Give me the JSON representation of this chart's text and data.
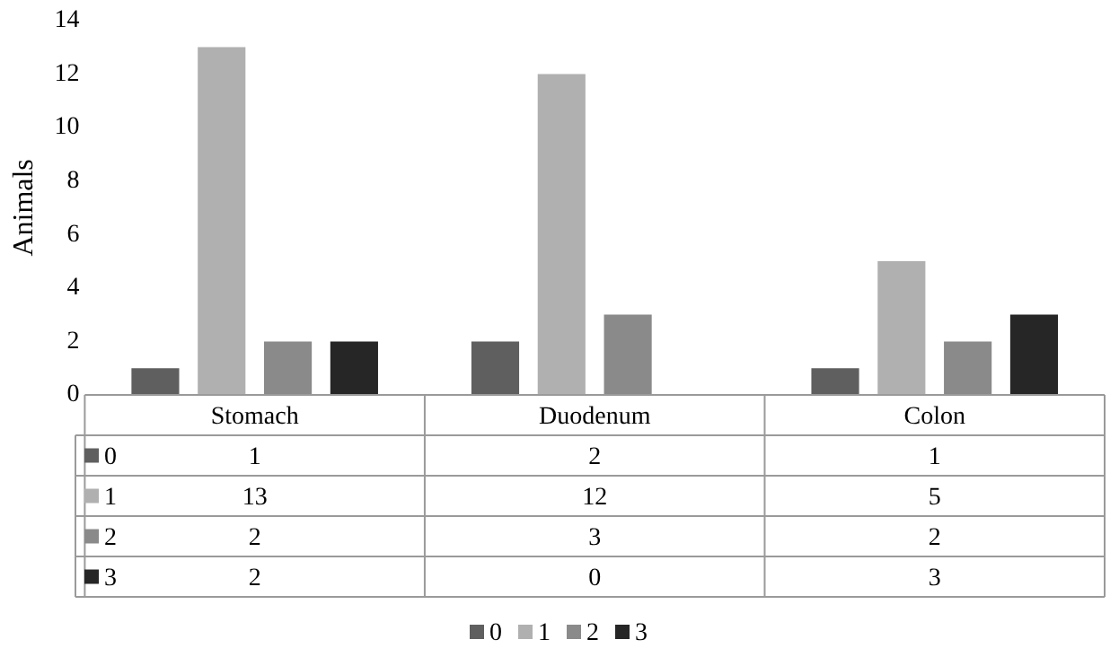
{
  "chart_data": {
    "type": "bar",
    "ylabel": "Animals",
    "categories": [
      "Stomach",
      "Duodenum",
      "Colon"
    ],
    "series": [
      {
        "name": "0",
        "color": "#5f5f5f",
        "values": [
          1,
          2,
          1
        ]
      },
      {
        "name": "1",
        "color": "#b0b0b0",
        "values": [
          13,
          12,
          5
        ]
      },
      {
        "name": "2",
        "color": "#8a8a8a",
        "values": [
          2,
          3,
          2
        ]
      },
      {
        "name": "3",
        "color": "#262626",
        "values": [
          2,
          0,
          3
        ]
      }
    ],
    "ylim": [
      0,
      14
    ],
    "yticks": [
      0,
      2,
      4,
      6,
      8,
      10,
      12,
      14
    ],
    "grid": false,
    "legend": "bottom",
    "data_labels": true
  }
}
